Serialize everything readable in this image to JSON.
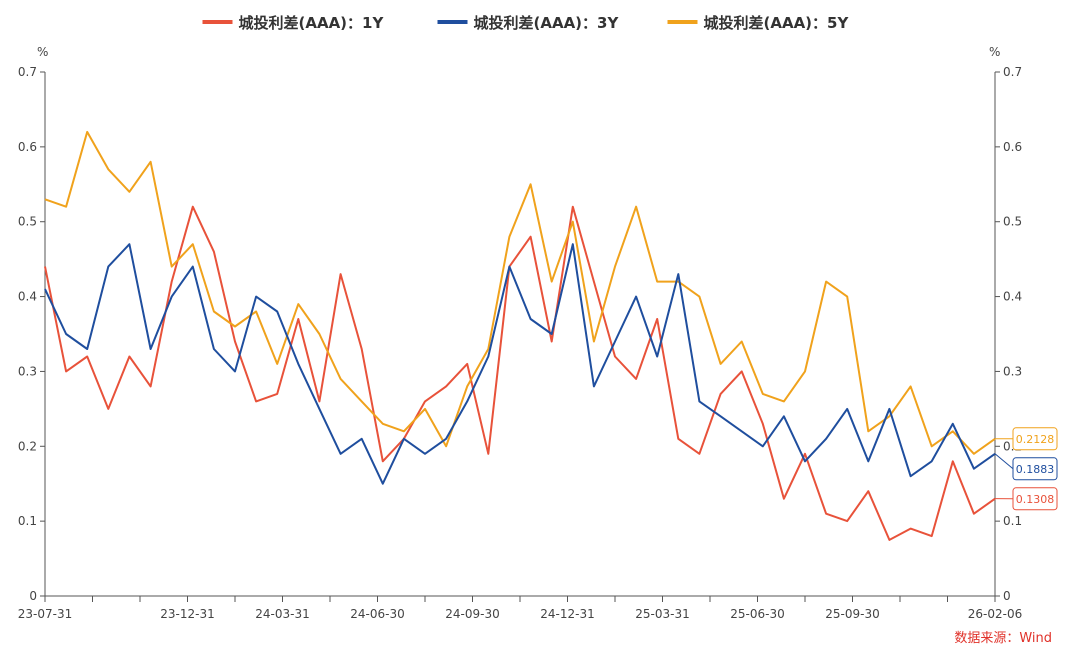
{
  "chart_data": {
    "type": "line",
    "legend_position": "top-center",
    "grid": false,
    "y_unit_left": "%",
    "y_unit_right": "%",
    "ylim": [
      0,
      0.7
    ],
    "yticks": [
      "0",
      "0.1",
      "0.2",
      "0.3",
      "0.4",
      "0.5",
      "0.6",
      "0.7"
    ],
    "x_labels": [
      "23-07-31",
      "23-12-31",
      "24-03-31",
      "24-06-30",
      "24-09-30",
      "24-12-31",
      "25-03-31",
      "25-06-30",
      "25-09-30",
      "26-02-06"
    ],
    "x_label_positions": [
      0,
      3,
      5,
      7,
      9,
      11,
      13,
      15,
      17,
      20
    ],
    "x_minor_ticks": [
      1,
      2,
      4,
      6,
      8,
      10,
      12,
      14,
      16,
      18,
      19
    ],
    "x_count": 21,
    "source": "数据来源：Wind",
    "series": [
      {
        "name": "城投利差(AAA)：1Y",
        "color": "#e8523a",
        "end_label": "0.1308",
        "values": [
          0.44,
          0.3,
          0.32,
          0.25,
          0.32,
          0.28,
          0.42,
          0.52,
          0.46,
          0.34,
          0.26,
          0.27,
          0.37,
          0.26,
          0.43,
          0.33,
          0.18,
          0.21,
          0.26,
          0.28,
          0.31,
          0.19,
          0.44,
          0.48,
          0.34,
          0.52,
          0.42,
          0.32,
          0.29,
          0.37,
          0.21,
          0.19,
          0.27,
          0.3,
          0.23,
          0.13,
          0.19,
          0.11,
          0.1,
          0.14,
          0.075,
          0.09,
          0.08,
          0.18,
          0.11,
          0.13
        ]
      },
      {
        "name": "城投利差(AAA)：3Y",
        "color": "#1f4e9e",
        "end_label": "0.1883",
        "values": [
          0.41,
          0.35,
          0.33,
          0.44,
          0.47,
          0.33,
          0.4,
          0.44,
          0.33,
          0.3,
          0.4,
          0.38,
          0.31,
          0.25,
          0.19,
          0.21,
          0.15,
          0.21,
          0.19,
          0.21,
          0.26,
          0.32,
          0.44,
          0.37,
          0.35,
          0.47,
          0.28,
          0.34,
          0.4,
          0.32,
          0.43,
          0.26,
          0.24,
          0.22,
          0.2,
          0.24,
          0.18,
          0.21,
          0.25,
          0.18,
          0.25,
          0.16,
          0.18,
          0.23,
          0.17,
          0.19
        ]
      },
      {
        "name": "城投利差(AAA)：5Y",
        "color": "#f0a21c",
        "end_label": "0.2128",
        "values": [
          0.53,
          0.52,
          0.62,
          0.57,
          0.54,
          0.58,
          0.44,
          0.47,
          0.38,
          0.36,
          0.38,
          0.31,
          0.39,
          0.35,
          0.29,
          0.26,
          0.23,
          0.22,
          0.25,
          0.2,
          0.28,
          0.33,
          0.48,
          0.55,
          0.42,
          0.5,
          0.34,
          0.44,
          0.52,
          0.42,
          0.42,
          0.4,
          0.31,
          0.34,
          0.27,
          0.26,
          0.3,
          0.42,
          0.4,
          0.22,
          0.24,
          0.28,
          0.2,
          0.22,
          0.19,
          0.21
        ]
      }
    ]
  }
}
